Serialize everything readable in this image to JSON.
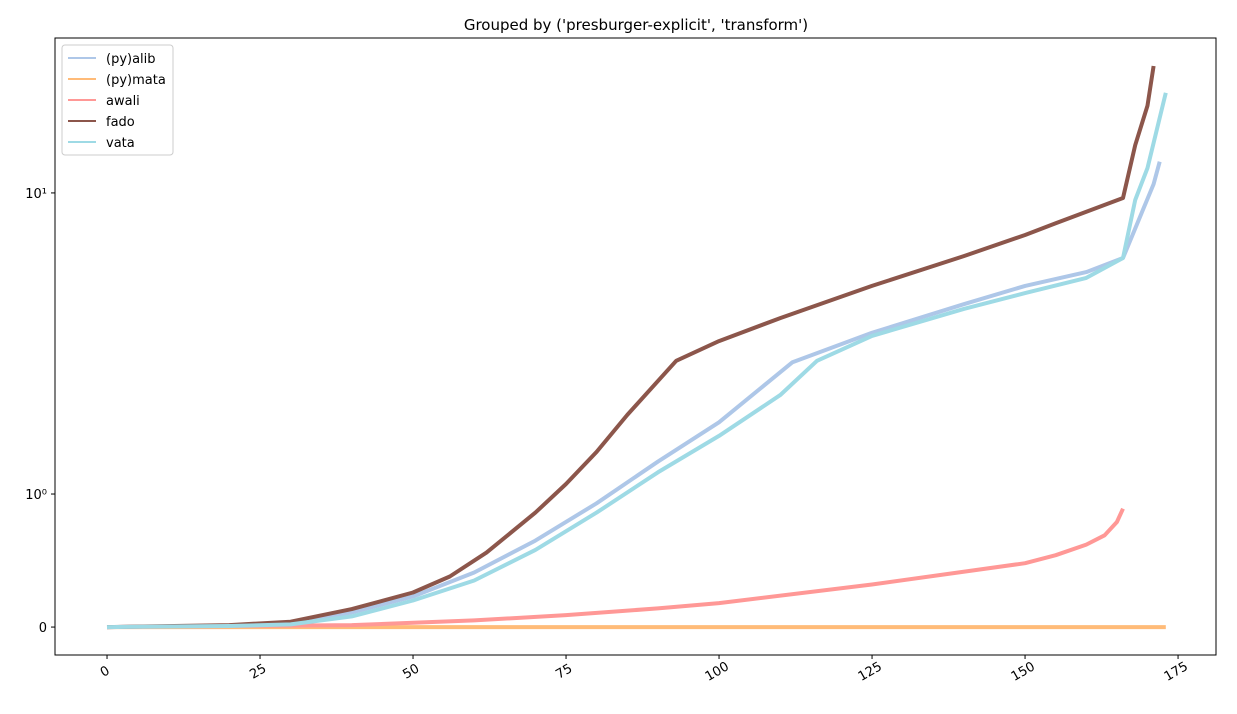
{
  "chart_data": {
    "type": "line",
    "title": "Grouped by ('presburger-explicit', 'transform')",
    "yscale": "symlog",
    "xlim": [
      -8.5,
      181.2
    ],
    "ylim": [
      -0.21,
      32.7
    ],
    "xticks": [
      0,
      25,
      50,
      75,
      100,
      125,
      150,
      175
    ],
    "yticks": [
      0,
      {
        "value": 1,
        "label": "10⁰"
      },
      {
        "value": 10,
        "label": "10¹"
      }
    ],
    "legend": "upper left",
    "series": [
      {
        "name": "(py)alib",
        "color": "#aec7e8",
        "x": [
          0,
          20,
          30,
          40,
          50,
          60,
          70,
          80,
          90,
          100,
          112,
          125,
          140,
          150,
          160,
          166,
          171,
          172
        ],
        "values": [
          0,
          0.01,
          0.03,
          0.11,
          0.23,
          0.41,
          0.65,
          0.93,
          1.28,
          1.73,
          2.74,
          3.43,
          4.27,
          4.91,
          5.46,
          6.08,
          10.7,
          12.7
        ]
      },
      {
        "name": "(py)mata",
        "color": "#ffbb78",
        "x": [
          0,
          173
        ],
        "values": [
          0,
          0
        ]
      },
      {
        "name": "awali",
        "color": "#ff9896",
        "x": [
          0,
          40,
          60,
          75,
          90,
          100,
          125,
          150,
          155,
          160,
          163,
          165,
          166
        ],
        "values": [
          0,
          0.015,
          0.05,
          0.09,
          0.14,
          0.18,
          0.32,
          0.48,
          0.54,
          0.62,
          0.69,
          0.79,
          0.89
        ]
      },
      {
        "name": "fado",
        "color": "#8c564b",
        "x": [
          0,
          20,
          30,
          40,
          50,
          56,
          62,
          70,
          75,
          80,
          85,
          93,
          100,
          110,
          125,
          140,
          150,
          155,
          166,
          168,
          170,
          171
        ],
        "values": [
          0,
          0.015,
          0.04,
          0.135,
          0.26,
          0.38,
          0.56,
          0.86,
          1.08,
          1.38,
          1.83,
          2.77,
          3.22,
          3.84,
          4.91,
          6.17,
          7.25,
          7.93,
          9.62,
          14.4,
          19.5,
          26.4
        ]
      },
      {
        "name": "vata",
        "color": "#9edae5",
        "x": [
          0,
          20,
          30,
          40,
          50,
          60,
          70,
          80,
          90,
          100,
          110,
          116,
          125,
          140,
          150,
          160,
          166,
          168,
          170,
          173
        ],
        "values": [
          0,
          0.008,
          0.02,
          0.08,
          0.2,
          0.35,
          0.58,
          0.86,
          1.18,
          1.56,
          2.13,
          2.77,
          3.35,
          4.12,
          4.65,
          5.22,
          6.08,
          9.47,
          12.1,
          21.5
        ]
      }
    ]
  }
}
